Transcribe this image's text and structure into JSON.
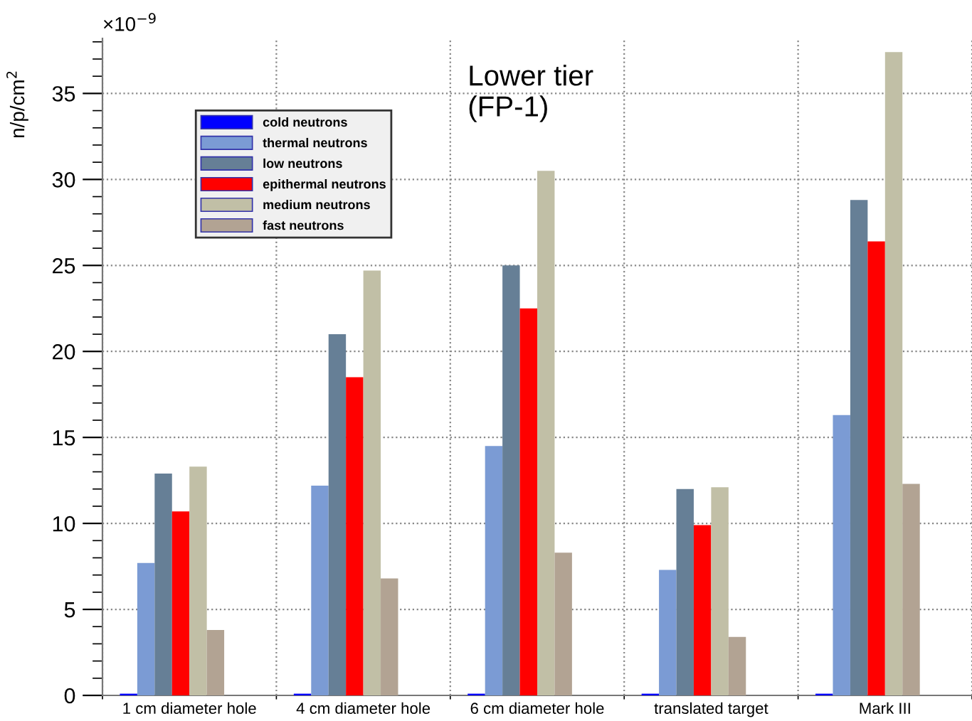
{
  "chart_data": {
    "type": "bar",
    "title": "Lower tier\n(FP-1)",
    "ylabel": "n/p/cm$^{2}$",
    "annotations": [
      "×10$^{−9}$"
    ],
    "categories": [
      "1 cm diameter hole",
      "4 cm diameter hole",
      "6 cm diameter hole",
      "translated target",
      "Mark III"
    ],
    "series": [
      {
        "name": "cold neutrons",
        "color": "#0000ff",
        "values": [
          0.1,
          0.1,
          0.1,
          0.1,
          0.1
        ]
      },
      {
        "name": "thermal neutrons",
        "color": "#7b9bd4",
        "values": [
          7.7,
          12.2,
          14.5,
          7.3,
          16.3
        ]
      },
      {
        "name": "low neutrons",
        "color": "#667f96",
        "values": [
          12.9,
          21.0,
          25.0,
          12.0,
          28.8
        ]
      },
      {
        "name": "epithermal neutrons",
        "color": "#ff0000",
        "values": [
          10.7,
          18.5,
          22.5,
          9.9,
          26.4
        ]
      },
      {
        "name": "medium neutrons",
        "color": "#c1bfa6",
        "values": [
          13.3,
          24.7,
          30.5,
          12.1,
          37.4
        ]
      },
      {
        "name": "fast neutrons",
        "color": "#b2a393",
        "values": [
          3.8,
          6.8,
          8.3,
          3.4,
          12.3
        ]
      }
    ],
    "ylim": [
      0,
      38.2
    ],
    "yticks": [
      0,
      5,
      10,
      15,
      20,
      25,
      30,
      35
    ],
    "grid": true,
    "legend": "top left"
  }
}
